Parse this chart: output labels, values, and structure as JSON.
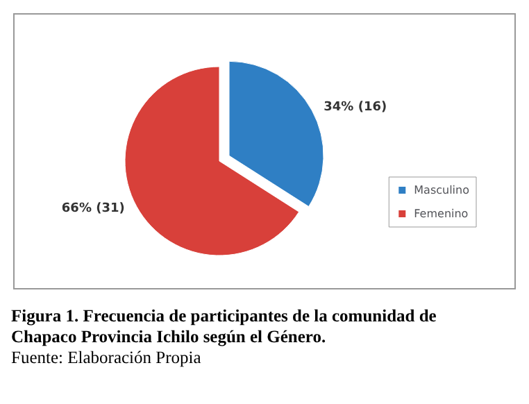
{
  "chart_data": {
    "type": "pie",
    "categories": [
      "Masculino",
      "Femenino"
    ],
    "values": [
      16,
      31
    ],
    "value_labels": [
      "34% (16)",
      "66% (31)"
    ],
    "colors": [
      "#2f7fc4",
      "#d8403a"
    ],
    "legend": "right",
    "annotations": [
      "Figura 1. Frecuencia de participantes de la comunidad de Chapaco Provincia Ichilo según el Género.",
      "Fuente: Elaboración Propia"
    ]
  }
}
